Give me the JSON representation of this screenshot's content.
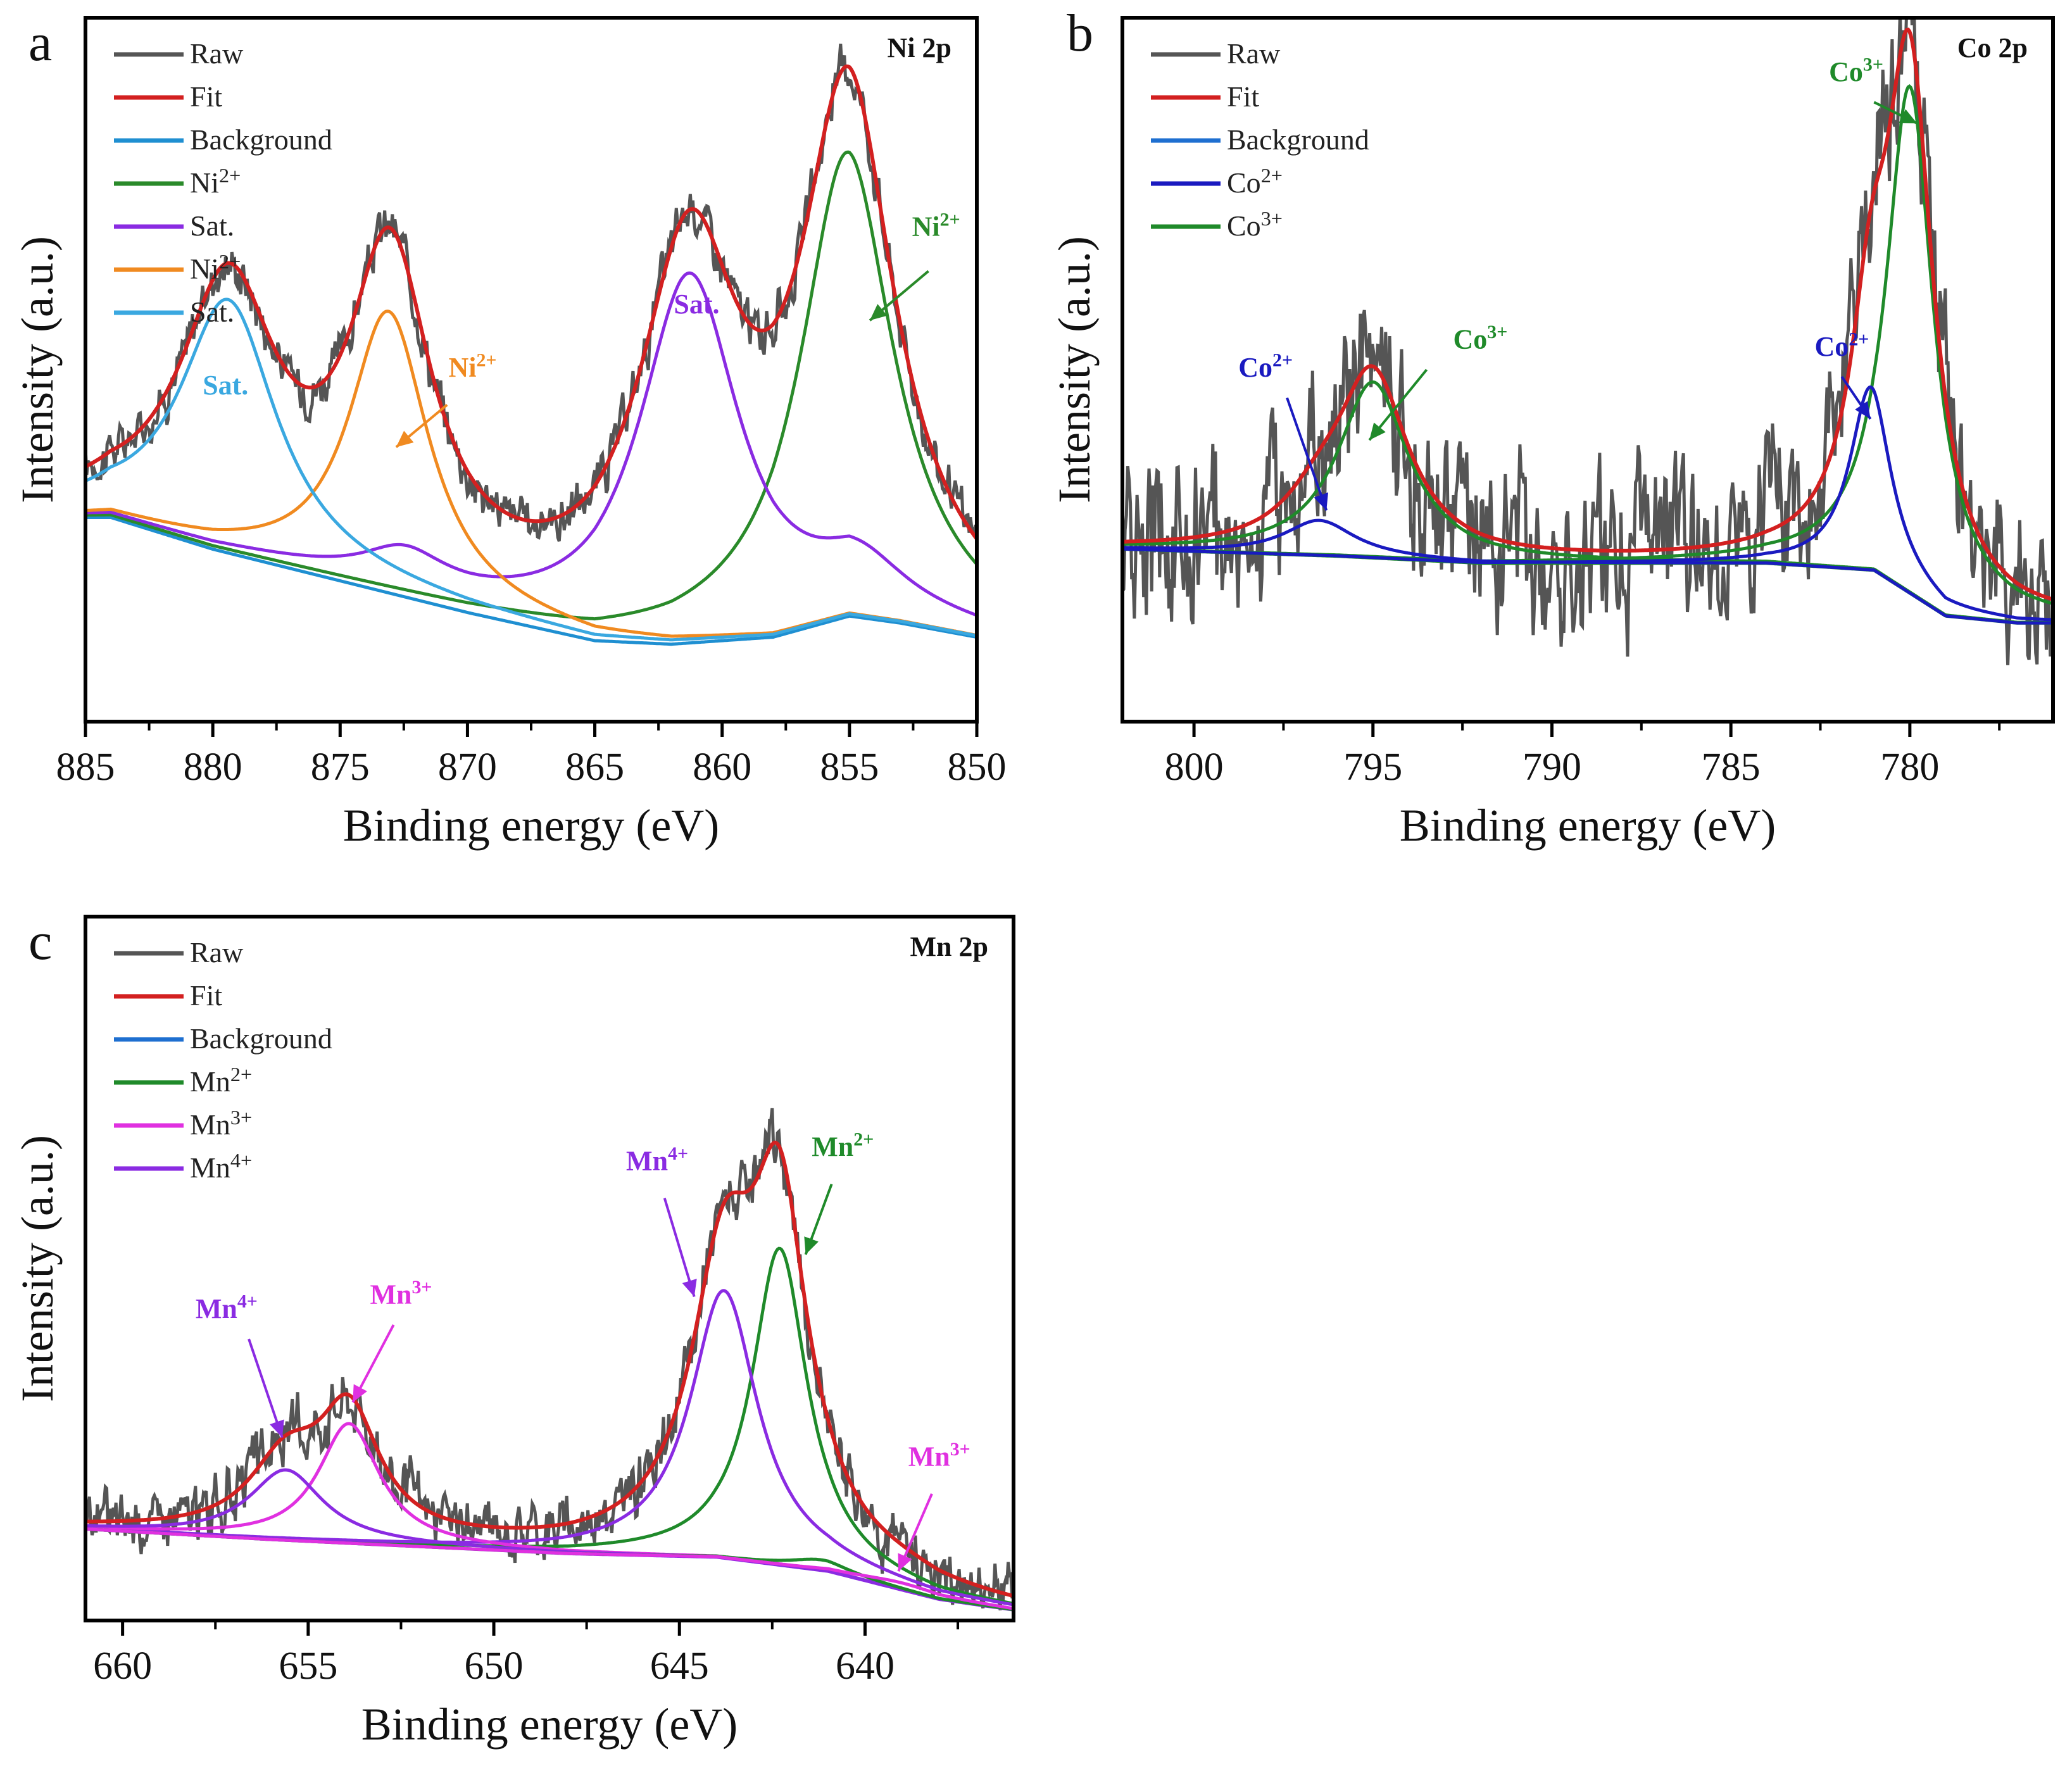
{
  "chart_data": [
    {
      "id": "a",
      "type": "line",
      "panel_letter": "a",
      "title": "Ni 2p",
      "xlabel": "Binding energy (eV)",
      "ylabel": "Intensity (a.u.)",
      "xlim": [
        885,
        850
      ],
      "ylim": [
        0,
        1
      ],
      "xticks": [
        885,
        880,
        875,
        870,
        865,
        860,
        855,
        850
      ],
      "raw": {
        "name": "Raw",
        "color": "#555555",
        "noise": 0.02,
        "noise_bias": 1.0
      },
      "legend": [
        {
          "name": "Raw",
          "color": "#555555"
        },
        {
          "name": "Fit",
          "color": "#d32020"
        },
        {
          "name": "Background",
          "color": "#1f8fd1"
        },
        {
          "name": "Ni",
          "sup": "2+",
          "color": "#2a8a2a"
        },
        {
          "name": "Sat.",
          "color": "#8a2be2"
        },
        {
          "name": "Ni",
          "sup": "2+",
          "color": "#f08a20"
        },
        {
          "name": "Sat.",
          "color": "#3aa8e0"
        }
      ],
      "background": {
        "name": "Background",
        "color": "#1f8fd1",
        "x": [
          884,
          880,
          875,
          870,
          865,
          862,
          858,
          855,
          853,
          850
        ],
        "y": [
          0.29,
          0.245,
          0.2,
          0.155,
          0.115,
          0.11,
          0.12,
          0.15,
          0.14,
          0.12
        ]
      },
      "components": [
        {
          "name": "Ni2+",
          "color": "#2a8a2a",
          "center": 855.1,
          "amp": 0.66,
          "width": 2.2,
          "base": "bg"
        },
        {
          "name": "Sat.",
          "color": "#8a2be2",
          "center": 861.3,
          "amp": 0.52,
          "width": 2.4,
          "base": "bg",
          "tail_center": 854.5,
          "tail_amp": 0.05,
          "tail_width": 2.0,
          "tail2_center": 872.5,
          "tail2_amp": 0.05,
          "tail2_width": 2.0
        },
        {
          "name": "Ni2+",
          "color": "#f08a20",
          "center": 873.1,
          "amp": 0.4,
          "width": 1.9,
          "base": "bg"
        },
        {
          "name": "Sat.",
          "color": "#3aa8e0",
          "center": 879.4,
          "amp": 0.36,
          "width": 2.3,
          "base": "bg"
        }
      ],
      "fit": {
        "name": "Fit",
        "color": "#d32020"
      },
      "annotations": [
        {
          "text": "Sat.",
          "sup": "",
          "x": 879.5,
          "y": 0.465,
          "color": "#3aa8e0"
        },
        {
          "text": "Ni",
          "sup": "2+",
          "x": 869.8,
          "y": 0.49,
          "color": "#f08a20",
          "arrow_from": [
            870.8,
            0.45
          ],
          "arrow_to": [
            872.8,
            0.39
          ]
        },
        {
          "text": "Sat.",
          "sup": "",
          "x": 861.0,
          "y": 0.58,
          "color": "#8a2be2"
        },
        {
          "text": "Ni",
          "sup": "2+",
          "x": 851.6,
          "y": 0.69,
          "color": "#2a8a2a",
          "arrow_from": [
            851.9,
            0.64
          ],
          "arrow_to": [
            854.2,
            0.57
          ]
        }
      ]
    },
    {
      "id": "b",
      "type": "line",
      "panel_letter": "b",
      "title": "Co 2p",
      "xlabel": "Binding energy (eV)",
      "ylabel": "Intensity (a.u.)",
      "xlim": [
        802,
        776
      ],
      "ylim": [
        0,
        1
      ],
      "xticks": [
        800,
        795,
        790,
        785,
        780
      ],
      "raw": {
        "name": "Raw",
        "color": "#555555",
        "noise": 0.07,
        "noise_bias": 1.0
      },
      "legend": [
        {
          "name": "Raw",
          "color": "#555555"
        },
        {
          "name": "Fit",
          "color": "#d32020"
        },
        {
          "name": "Background",
          "color": "#1e6fd0"
        },
        {
          "name": "Co",
          "sup": "2+",
          "color": "#1a1ac0"
        },
        {
          "name": "Co",
          "sup": "3+",
          "color": "#1f8a2a"
        }
      ],
      "background": {
        "name": "Background",
        "color": "#1f8a2a",
        "x": [
          802,
          796,
          792,
          788,
          784,
          781,
          779,
          777,
          776
        ],
        "y": [
          0.245,
          0.235,
          0.225,
          0.225,
          0.225,
          0.215,
          0.15,
          0.14,
          0.14
        ]
      },
      "components": [
        {
          "name": "Co3+",
          "color": "#1f8a2a",
          "center": 780.0,
          "amp": 0.72,
          "width": 0.8,
          "base": "bg"
        },
        {
          "name": "Co3+",
          "color": "#1f8a2a",
          "center": 795.0,
          "amp": 0.25,
          "width": 1.2,
          "base": "bg"
        },
        {
          "name": "Co2+",
          "color": "#1a1ac0",
          "center": 781.1,
          "amp": 0.26,
          "width": 0.7,
          "base": "bg"
        },
        {
          "name": "Co2+",
          "color": "#1a1ac0",
          "center": 796.5,
          "amp": 0.05,
          "width": 1.2,
          "base": "bg"
        }
      ],
      "fit": {
        "name": "Fit",
        "color": "#d32020"
      },
      "annotations": [
        {
          "text": "Co",
          "sup": "3+",
          "x": 781.5,
          "y": 0.91,
          "color": "#1f8a2a",
          "arrow_from": [
            781.0,
            0.88
          ],
          "arrow_to": [
            779.8,
            0.85
          ]
        },
        {
          "text": "Co",
          "sup": "3+",
          "x": 792.0,
          "y": 0.53,
          "color": "#1f8a2a",
          "arrow_from": [
            793.5,
            0.5
          ],
          "arrow_to": [
            795.1,
            0.4
          ]
        },
        {
          "text": "Co",
          "sup": "2+",
          "x": 781.9,
          "y": 0.52,
          "color": "#1a1ac0",
          "arrow_from": [
            781.9,
            0.49
          ],
          "arrow_to": [
            781.1,
            0.43
          ]
        },
        {
          "text": "Co",
          "sup": "2+",
          "x": 798.0,
          "y": 0.49,
          "color": "#1a1ac0",
          "arrow_from": [
            797.4,
            0.46
          ],
          "arrow_to": [
            796.3,
            0.3
          ]
        }
      ]
    },
    {
      "id": "c",
      "type": "line",
      "panel_letter": "c",
      "title": "Mn 2p",
      "xlabel": "Binding energy (eV)",
      "ylabel": "Intensity (a.u.)",
      "xlim": [
        661,
        636
      ],
      "ylim": [
        0,
        1
      ],
      "xticks": [
        660,
        655,
        650,
        645,
        640
      ],
      "raw": {
        "name": "Raw",
        "color": "#555555",
        "noise": 0.025,
        "noise_bias": 1.0
      },
      "legend": [
        {
          "name": "Raw",
          "color": "#555555"
        },
        {
          "name": "Fit",
          "color": "#d32020"
        },
        {
          "name": "Background",
          "color": "#1e6fd0"
        },
        {
          "name": "Mn",
          "sup": "2+",
          "color": "#1f8a2a"
        },
        {
          "name": "Mn",
          "sup": "3+",
          "color": "#e030e0"
        },
        {
          "name": "Mn",
          "sup": "4+",
          "color": "#8a2be2"
        }
      ],
      "background": {
        "name": "Background",
        "color": "#8a2be2",
        "x": [
          661,
          656,
          652,
          648,
          644,
          641,
          638,
          636
        ],
        "y": [
          0.13,
          0.115,
          0.105,
          0.095,
          0.09,
          0.07,
          0.03,
          0.015
        ]
      },
      "components": [
        {
          "name": "Mn2+",
          "color": "#1f8a2a",
          "center": 642.3,
          "amp": 0.45,
          "width": 0.9,
          "base": "bg"
        },
        {
          "name": "Mn4+",
          "color": "#8a2be2",
          "center": 643.8,
          "amp": 0.38,
          "width": 1.1,
          "base": "bg"
        },
        {
          "name": "Mn3+",
          "color": "#e030e0",
          "center": 653.9,
          "amp": 0.17,
          "width": 1.0,
          "base": "bg"
        },
        {
          "name": "Mn4+",
          "color": "#8a2be2",
          "center": 655.6,
          "amp": 0.1,
          "width": 1.2,
          "base": "bg"
        },
        {
          "name": "Mn2+",
          "color": "#1f8a2a",
          "center": 641.2,
          "amp": 0.015,
          "width": 1.0,
          "base": "bg"
        },
        {
          "name": "Mn3+",
          "color": "#e030e0",
          "center": 639.0,
          "amp": 0.01,
          "width": 1.5,
          "base": "bg"
        }
      ],
      "fit": {
        "name": "Fit",
        "color": "#d32020"
      },
      "annotations": [
        {
          "text": "Mn",
          "sup": "2+",
          "x": 640.6,
          "y": 0.66,
          "color": "#1f8a2a",
          "arrow_from": [
            640.9,
            0.62
          ],
          "arrow_to": [
            641.6,
            0.52
          ]
        },
        {
          "text": "Mn",
          "sup": "4+",
          "x": 645.6,
          "y": 0.64,
          "color": "#8a2be2",
          "arrow_from": [
            645.4,
            0.6
          ],
          "arrow_to": [
            644.6,
            0.46
          ]
        },
        {
          "text": "Mn",
          "sup": "3+",
          "x": 652.5,
          "y": 0.45,
          "color": "#e030e0",
          "arrow_from": [
            652.7,
            0.42
          ],
          "arrow_to": [
            653.8,
            0.31
          ]
        },
        {
          "text": "Mn",
          "sup": "4+",
          "x": 657.2,
          "y": 0.43,
          "color": "#8a2be2",
          "arrow_from": [
            656.6,
            0.4
          ],
          "arrow_to": [
            655.7,
            0.26
          ]
        },
        {
          "text": "Mn",
          "sup": "3+",
          "x": 638.0,
          "y": 0.22,
          "color": "#e030e0",
          "arrow_from": [
            638.2,
            0.18
          ],
          "arrow_to": [
            639.1,
            0.07
          ]
        }
      ]
    }
  ]
}
